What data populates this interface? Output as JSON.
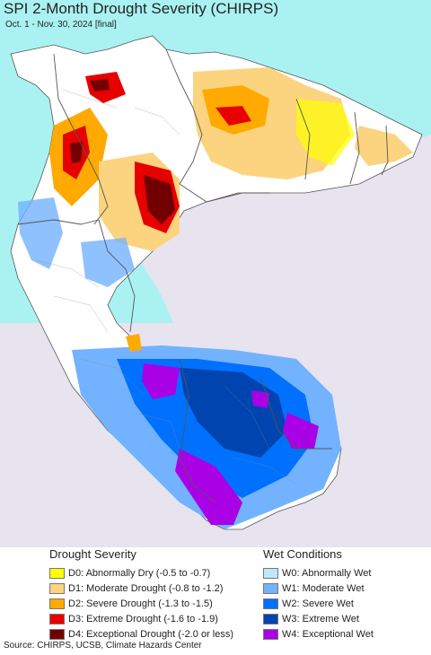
{
  "title": "SPI 2-Month Drought Severity (CHIRPS)",
  "subtitle": "Oct. 1 - Nov. 30, 2024 [final]",
  "colors": {
    "ocean": "#aaf2f2",
    "land_nodata": "#e7e4ef",
    "land_normal": "#ffffff",
    "border": "#555555"
  },
  "legend": {
    "drought": {
      "heading": "Drought Severity",
      "items": [
        {
          "label": "D0: Abnormally Dry (-0.5 to -0.7)",
          "color": "#ffff00"
        },
        {
          "label": "D1: Moderate Drought (-0.8 to -1.2)",
          "color": "#fcd37f"
        },
        {
          "label": "D2: Severe Drought (-1.3 to -1.5)",
          "color": "#ffaa00"
        },
        {
          "label": "D3: Extreme Drought (-1.6 to -1.9)",
          "color": "#e60000"
        },
        {
          "label": "D4: Exceptional Drought (-2.0 or less)",
          "color": "#730000"
        }
      ]
    },
    "wet": {
      "heading": "Wet Conditions",
      "items": [
        {
          "label": "W0: Abnormally Wet",
          "color": "#bee8ff"
        },
        {
          "label": "W1: Moderate Wet",
          "color": "#73b2ff"
        },
        {
          "label": "W2: Severe Wet",
          "color": "#0070ff"
        },
        {
          "label": "W3: Extreme Wet",
          "color": "#0044b0"
        },
        {
          "label": "W4: Exceptional Wet",
          "color": "#a900e6"
        }
      ]
    }
  },
  "source": "Source: CHIRPS, UCSB, Climate Hazards Center"
}
